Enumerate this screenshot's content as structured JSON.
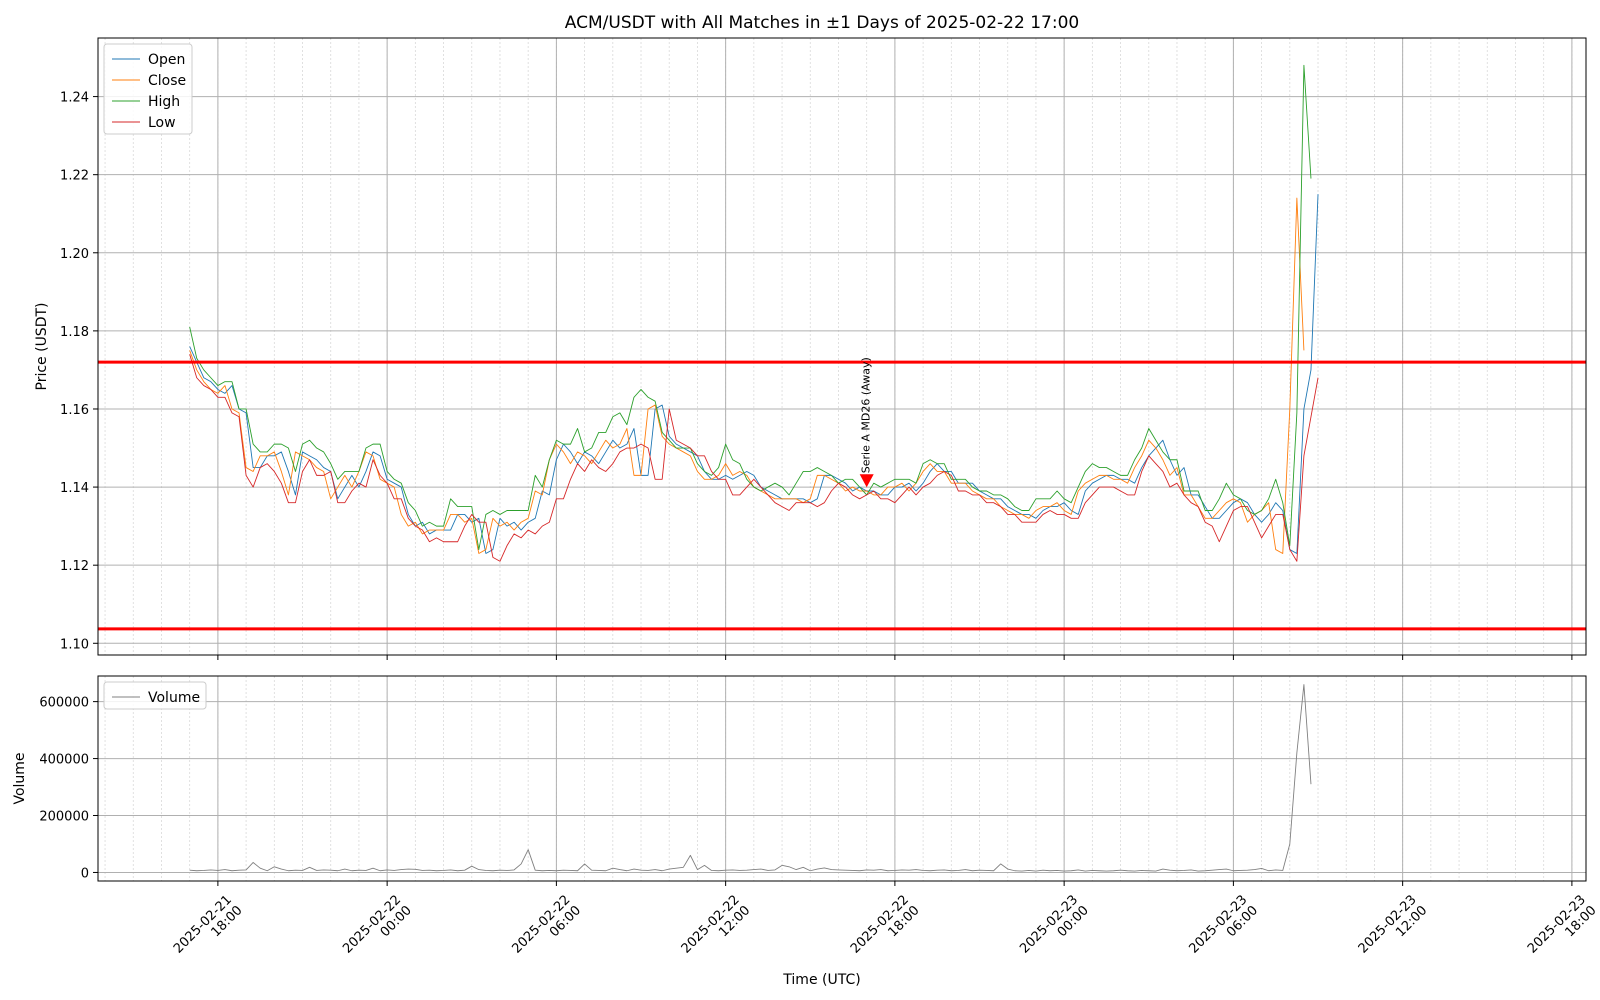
{
  "chart_data": [
    {
      "type": "line",
      "title": "ACM/USDT with All Matches in ±1 Days of 2025-02-22 17:00",
      "xlabel": "",
      "ylabel": "Price (USDT)",
      "ylim": [
        1.097,
        1.255
      ],
      "xlim": [
        "2025-02-21 13:45",
        "2025-02-23 18:30"
      ],
      "grid": true,
      "legend_position": "top-left",
      "yticks": [
        1.1,
        1.12,
        1.14,
        1.16,
        1.18,
        1.2,
        1.22,
        1.24
      ],
      "ytick_labels": [
        "1.10",
        "1.12",
        "1.14",
        "1.16",
        "1.18",
        "1.20",
        "1.22",
        "1.24"
      ],
      "colors": {
        "Open": "#1f77b4",
        "Close": "#ff7f0e",
        "High": "#2ca02c",
        "Low": "#d62728",
        "threshold": "#ff0000",
        "marker": "#ff0000"
      },
      "x_start": "2025-02-21 17:00",
      "x_step_minutes": 15,
      "horizontal_lines": [
        1.172,
        1.1037
      ],
      "annotations": [
        {
          "text": "Serie A MD26 (Away)",
          "x": "2025-02-22 17:00",
          "y": 1.1415,
          "marker": "down-triangle"
        }
      ],
      "series": [
        {
          "name": "Open",
          "values": [
            1.176,
            1.172,
            1.168,
            1.167,
            1.165,
            1.164,
            1.166,
            1.16,
            1.159,
            1.145,
            1.145,
            1.148,
            1.148,
            1.149,
            1.144,
            1.138,
            1.149,
            1.148,
            1.147,
            1.145,
            1.144,
            1.137,
            1.14,
            1.143,
            1.14,
            1.144,
            1.149,
            1.148,
            1.142,
            1.141,
            1.14,
            1.133,
            1.13,
            1.131,
            1.128,
            1.129,
            1.129,
            1.129,
            1.133,
            1.133,
            1.131,
            1.132,
            1.123,
            1.124,
            1.132,
            1.13,
            1.131,
            1.129,
            1.131,
            1.132,
            1.139,
            1.138,
            1.147,
            1.151,
            1.149,
            1.146,
            1.149,
            1.148,
            1.146,
            1.149,
            1.152,
            1.15,
            1.151,
            1.155,
            1.143,
            1.143,
            1.16,
            1.161,
            1.153,
            1.151,
            1.15,
            1.149,
            1.148,
            1.144,
            1.142,
            1.142,
            1.143,
            1.142,
            1.143,
            1.144,
            1.143,
            1.14,
            1.139,
            1.138,
            1.137,
            1.137,
            1.137,
            1.137,
            1.136,
            1.137,
            1.143,
            1.143,
            1.142,
            1.141,
            1.139,
            1.14,
            1.139,
            1.139,
            1.138,
            1.138,
            1.14,
            1.14,
            1.141,
            1.139,
            1.141,
            1.144,
            1.146,
            1.144,
            1.144,
            1.141,
            1.141,
            1.141,
            1.139,
            1.138,
            1.137,
            1.137,
            1.135,
            1.134,
            1.133,
            1.133,
            1.132,
            1.134,
            1.135,
            1.135,
            1.136,
            1.134,
            1.133,
            1.139,
            1.141,
            1.142,
            1.143,
            1.143,
            1.142,
            1.142,
            1.141,
            1.145,
            1.148,
            1.15,
            1.152,
            1.147,
            1.143,
            1.145,
            1.138,
            1.138,
            1.135,
            1.132,
            1.132,
            1.134,
            1.136,
            1.137,
            1.136,
            1.133,
            1.131,
            1.133,
            1.136,
            1.134,
            1.124,
            1.123,
            1.16,
            1.17,
            1.215
          ]
        },
        {
          "name": "Close",
          "values": [
            1.175,
            1.17,
            1.167,
            1.165,
            1.164,
            1.166,
            1.16,
            1.159,
            1.145,
            1.144,
            1.148,
            1.148,
            1.149,
            1.144,
            1.138,
            1.149,
            1.148,
            1.147,
            1.145,
            1.144,
            1.137,
            1.14,
            1.143,
            1.14,
            1.144,
            1.149,
            1.148,
            1.142,
            1.141,
            1.14,
            1.133,
            1.13,
            1.131,
            1.128,
            1.129,
            1.129,
            1.129,
            1.133,
            1.133,
            1.131,
            1.132,
            1.123,
            1.124,
            1.132,
            1.13,
            1.131,
            1.129,
            1.131,
            1.132,
            1.139,
            1.138,
            1.147,
            1.151,
            1.149,
            1.146,
            1.149,
            1.148,
            1.146,
            1.149,
            1.152,
            1.15,
            1.151,
            1.155,
            1.143,
            1.143,
            1.16,
            1.161,
            1.153,
            1.151,
            1.15,
            1.149,
            1.148,
            1.144,
            1.142,
            1.142,
            1.143,
            1.146,
            1.143,
            1.144,
            1.143,
            1.14,
            1.139,
            1.138,
            1.137,
            1.137,
            1.137,
            1.137,
            1.136,
            1.137,
            1.143,
            1.143,
            1.142,
            1.141,
            1.139,
            1.14,
            1.139,
            1.139,
            1.138,
            1.138,
            1.14,
            1.14,
            1.141,
            1.139,
            1.141,
            1.144,
            1.146,
            1.144,
            1.144,
            1.141,
            1.141,
            1.141,
            1.139,
            1.138,
            1.137,
            1.137,
            1.135,
            1.134,
            1.133,
            1.133,
            1.132,
            1.134,
            1.135,
            1.135,
            1.136,
            1.134,
            1.133,
            1.139,
            1.141,
            1.142,
            1.143,
            1.143,
            1.142,
            1.142,
            1.141,
            1.145,
            1.148,
            1.152,
            1.15,
            1.147,
            1.143,
            1.145,
            1.138,
            1.138,
            1.135,
            1.132,
            1.132,
            1.134,
            1.136,
            1.137,
            1.136,
            1.131,
            1.133,
            1.134,
            1.136,
            1.124,
            1.123,
            1.16,
            1.214,
            1.175
          ]
        },
        {
          "name": "High",
          "values": [
            1.181,
            1.173,
            1.17,
            1.168,
            1.166,
            1.167,
            1.167,
            1.16,
            1.16,
            1.151,
            1.149,
            1.149,
            1.151,
            1.151,
            1.15,
            1.144,
            1.151,
            1.152,
            1.15,
            1.149,
            1.146,
            1.142,
            1.144,
            1.144,
            1.144,
            1.15,
            1.151,
            1.151,
            1.144,
            1.142,
            1.141,
            1.136,
            1.134,
            1.13,
            1.131,
            1.13,
            1.13,
            1.137,
            1.135,
            1.135,
            1.135,
            1.124,
            1.133,
            1.134,
            1.133,
            1.134,
            1.134,
            1.134,
            1.134,
            1.143,
            1.14,
            1.147,
            1.152,
            1.151,
            1.151,
            1.155,
            1.149,
            1.15,
            1.154,
            1.154,
            1.158,
            1.159,
            1.156,
            1.163,
            1.165,
            1.163,
            1.162,
            1.154,
            1.152,
            1.15,
            1.15,
            1.15,
            1.146,
            1.144,
            1.143,
            1.145,
            1.151,
            1.147,
            1.146,
            1.142,
            1.14,
            1.139,
            1.14,
            1.141,
            1.14,
            1.138,
            1.141,
            1.144,
            1.144,
            1.145,
            1.144,
            1.143,
            1.141,
            1.142,
            1.142,
            1.14,
            1.138,
            1.141,
            1.14,
            1.141,
            1.142,
            1.142,
            1.142,
            1.141,
            1.146,
            1.147,
            1.146,
            1.146,
            1.142,
            1.142,
            1.142,
            1.14,
            1.139,
            1.139,
            1.138,
            1.138,
            1.137,
            1.135,
            1.134,
            1.134,
            1.137,
            1.137,
            1.137,
            1.139,
            1.137,
            1.136,
            1.14,
            1.144,
            1.146,
            1.145,
            1.145,
            1.144,
            1.143,
            1.143,
            1.147,
            1.15,
            1.155,
            1.152,
            1.149,
            1.147,
            1.147,
            1.139,
            1.139,
            1.139,
            1.134,
            1.134,
            1.137,
            1.141,
            1.138,
            1.137,
            1.134,
            1.133,
            1.134,
            1.137,
            1.142,
            1.136,
            1.125,
            1.159,
            1.248,
            1.219
          ]
        },
        {
          "name": "Low",
          "values": [
            1.174,
            1.168,
            1.166,
            1.165,
            1.163,
            1.163,
            1.159,
            1.158,
            1.143,
            1.14,
            1.145,
            1.146,
            1.144,
            1.141,
            1.136,
            1.136,
            1.144,
            1.147,
            1.143,
            1.143,
            1.144,
            1.136,
            1.136,
            1.139,
            1.141,
            1.14,
            1.147,
            1.143,
            1.141,
            1.137,
            1.137,
            1.132,
            1.13,
            1.129,
            1.126,
            1.127,
            1.126,
            1.126,
            1.126,
            1.13,
            1.133,
            1.131,
            1.131,
            1.122,
            1.121,
            1.125,
            1.128,
            1.127,
            1.129,
            1.128,
            1.13,
            1.131,
            1.137,
            1.137,
            1.142,
            1.146,
            1.144,
            1.147,
            1.145,
            1.144,
            1.146,
            1.149,
            1.15,
            1.15,
            1.151,
            1.15,
            1.142,
            1.142,
            1.16,
            1.152,
            1.151,
            1.15,
            1.148,
            1.148,
            1.144,
            1.142,
            1.142,
            1.138,
            1.138,
            1.14,
            1.142,
            1.14,
            1.138,
            1.136,
            1.135,
            1.134,
            1.136,
            1.136,
            1.136,
            1.135,
            1.136,
            1.139,
            1.141,
            1.14,
            1.138,
            1.137,
            1.138,
            1.139,
            1.137,
            1.137,
            1.136,
            1.138,
            1.14,
            1.138,
            1.14,
            1.141,
            1.143,
            1.144,
            1.143,
            1.139,
            1.139,
            1.138,
            1.138,
            1.136,
            1.136,
            1.135,
            1.133,
            1.133,
            1.131,
            1.131,
            1.131,
            1.133,
            1.134,
            1.133,
            1.133,
            1.132,
            1.132,
            1.136,
            1.138,
            1.14,
            1.14,
            1.14,
            1.139,
            1.138,
            1.138,
            1.144,
            1.148,
            1.146,
            1.144,
            1.14,
            1.141,
            1.138,
            1.136,
            1.135,
            1.131,
            1.13,
            1.126,
            1.13,
            1.134,
            1.135,
            1.135,
            1.131,
            1.127,
            1.13,
            1.133,
            1.133,
            1.124,
            1.121,
            1.148,
            1.158,
            1.168
          ]
        }
      ]
    },
    {
      "type": "line",
      "title": "",
      "xlabel": "Time (UTC)",
      "ylabel": "Volume",
      "ylim": [
        -30000,
        690000
      ],
      "yticks": [
        0,
        200000,
        400000,
        600000
      ],
      "ytick_labels": [
        "0",
        "200000",
        "400000",
        "600000"
      ],
      "xticks": [
        "2025-02-21 18:00",
        "2025-02-22 00:00",
        "2025-02-22 06:00",
        "2025-02-22 12:00",
        "2025-02-22 18:00",
        "2025-02-23 00:00",
        "2025-02-23 06:00",
        "2025-02-23 12:00",
        "2025-02-23 18:00"
      ],
      "xtick_labels": [
        [
          "2025-02-21",
          "18:00"
        ],
        [
          "2025-02-22",
          "00:00"
        ],
        [
          "2025-02-22",
          "06:00"
        ],
        [
          "2025-02-22",
          "12:00"
        ],
        [
          "2025-02-22",
          "18:00"
        ],
        [
          "2025-02-23",
          "00:00"
        ],
        [
          "2025-02-23",
          "06:00"
        ],
        [
          "2025-02-23",
          "12:00"
        ],
        [
          "2025-02-23",
          "18:00"
        ]
      ],
      "grid": true,
      "legend_position": "top-left",
      "colors": {
        "Volume": "#808080"
      },
      "series": [
        {
          "name": "Volume",
          "values": [
            8000,
            6000,
            7000,
            9000,
            7000,
            10000,
            6000,
            8000,
            9000,
            35000,
            15000,
            6000,
            20000,
            12000,
            6000,
            8000,
            7000,
            18000,
            7000,
            9000,
            8000,
            6000,
            12000,
            6000,
            8000,
            7000,
            15000,
            6000,
            9000,
            7000,
            10000,
            12000,
            11000,
            7000,
            8000,
            6000,
            7000,
            9000,
            6000,
            8000,
            22000,
            10000,
            7000,
            6000,
            8000,
            7000,
            9000,
            30000,
            80000,
            8000,
            6000,
            7000,
            6000,
            8000,
            7000,
            6000,
            30000,
            8000,
            7000,
            6000,
            15000,
            10000,
            6000,
            12000,
            8000,
            7000,
            10000,
            6000,
            12000,
            15000,
            18000,
            60000,
            10000,
            25000,
            7000,
            6000,
            8000,
            9000,
            7000,
            8000,
            10000,
            12000,
            7000,
            9000,
            25000,
            20000,
            10000,
            18000,
            6000,
            12000,
            16000,
            10000,
            9000,
            8000,
            7000,
            6000,
            9000,
            8000,
            10000,
            6000,
            7000,
            9000,
            8000,
            10000,
            7000,
            6000,
            8000,
            9000,
            6000,
            7000,
            10000,
            6000,
            8000,
            7000,
            6000,
            30000,
            12000,
            6000,
            5000,
            7000,
            5000,
            8000,
            6000,
            7000,
            5000,
            6000,
            9000,
            5000,
            7000,
            6000,
            5000,
            6000,
            8000,
            6000,
            5000,
            7000,
            6000,
            5000,
            12000,
            8000,
            6000,
            7000,
            9000,
            5000,
            6000,
            8000,
            10000,
            12000,
            6000,
            7000,
            8000,
            10000,
            14000,
            6000,
            9000,
            7000,
            100000,
            420000,
            660000,
            310000
          ]
        }
      ]
    }
  ]
}
